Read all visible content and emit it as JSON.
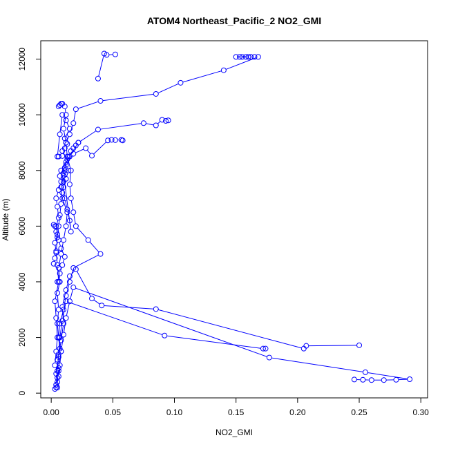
{
  "chart_data": {
    "type": "line",
    "title": "ATOM4 Northeast_Pacific_2 NO2_GMI",
    "xlabel": "NO2_GMI",
    "ylabel": "Altitude (m)",
    "xlim": [
      -0.0085,
      0.3055
    ],
    "ylim": [
      -170,
      12660
    ],
    "xticks": [
      0.0,
      0.05,
      0.1,
      0.15,
      0.2,
      0.25,
      0.3
    ],
    "xtick_labels": [
      "0.00",
      "0.05",
      "0.10",
      "0.15",
      "0.20",
      "0.25",
      "0.30"
    ],
    "yticks": [
      0,
      2000,
      4000,
      6000,
      8000,
      10000,
      12000
    ],
    "ytick_labels": [
      "0",
      "2000",
      "4000",
      "6000",
      "8000",
      "10000",
      "12000"
    ],
    "grid": false,
    "legend": "none",
    "color": "#0000ff",
    "marker": "open-circle",
    "series": [
      {
        "x": [
          0.003,
          0.004,
          0.005,
          0.006,
          0.005,
          0.007,
          0.006,
          0.005,
          0.006,
          0.005,
          0.007,
          0.006,
          0.008,
          0.01,
          0.012,
          0.013,
          0.009,
          0.008,
          0.01,
          0.011,
          0.013,
          0.009,
          0.012,
          0.015,
          0.018,
          0.02,
          0.04,
          0.085,
          0.105,
          0.14,
          0.168
        ],
        "y": [
          150,
          300,
          550,
          800,
          1200,
          1600,
          2000,
          2500,
          3000,
          3600,
          4000,
          4500,
          5000,
          5500,
          6000,
          6500,
          7000,
          7400,
          7800,
          8100,
          8400,
          8700,
          9000,
          9300,
          9700,
          10200,
          10500,
          10750,
          11150,
          11600,
          12080
        ]
      },
      {
        "x": [
          0.165,
          0.162,
          0.158,
          0.155,
          0.15,
          0.16,
          0.153,
          0.162
        ],
        "y": [
          12080,
          12080,
          12080,
          12080,
          12080,
          12080,
          12080,
          12080
        ]
      },
      {
        "x": [
          0.004,
          0.006,
          0.007,
          0.008,
          0.006,
          0.007,
          0.01,
          0.012,
          0.015,
          0.018,
          0.04,
          0.03,
          0.02,
          0.018,
          0.016,
          0.015,
          0.016,
          0.013,
          0.012,
          0.01,
          0.012,
          0.011,
          0.009,
          0.008,
          0.007,
          0.006
        ],
        "y": [
          200,
          600,
          1000,
          1500,
          2000,
          2500,
          3000,
          3500,
          4000,
          4500,
          5000,
          5500,
          6000,
          6500,
          7000,
          7500,
          8000,
          8500,
          9000,
          9500,
          10000,
          10300,
          10400,
          10400,
          10350,
          10300
        ]
      },
      {
        "x": [
          0.038,
          0.043,
          0.045,
          0.052
        ],
        "y": [
          11300,
          12200,
          12150,
          12170
        ]
      },
      {
        "x": [
          0.005,
          0.004,
          0.006,
          0.008,
          0.01,
          0.009,
          0.012,
          0.015,
          0.02,
          0.033,
          0.041,
          0.085,
          0.205,
          0.207,
          0.25
        ],
        "y": [
          200,
          700,
          1300,
          1900,
          2500,
          3100,
          3700,
          4200,
          4450,
          3400,
          3150,
          3020,
          1600,
          1700,
          1720
        ]
      },
      {
        "x": [
          0.004,
          0.005,
          0.006,
          0.007,
          0.009,
          0.012,
          0.092,
          0.172,
          0.174
        ],
        "y": [
          300,
          800,
          1400,
          2000,
          2600,
          3300,
          2070,
          1600,
          1600
        ]
      },
      {
        "x": [
          0.005,
          0.006,
          0.008,
          0.01,
          0.012,
          0.015,
          0.018,
          0.177,
          0.255,
          0.291,
          0.28,
          0.27,
          0.26,
          0.253,
          0.246
        ],
        "y": [
          400,
          900,
          1500,
          2100,
          2700,
          3300,
          3800,
          1280,
          750,
          500,
          480,
          470,
          470,
          480,
          490
        ]
      },
      {
        "x": [
          0.008,
          0.015,
          0.022,
          0.038,
          0.075,
          0.085,
          0.09,
          0.093,
          0.095
        ],
        "y": [
          8000,
          8500,
          9000,
          9470,
          9700,
          9620,
          9820,
          9780,
          9800
        ]
      },
      {
        "x": [
          0.007,
          0.012,
          0.018,
          0.028,
          0.033,
          0.046,
          0.049,
          0.052,
          0.057,
          0.058
        ],
        "y": [
          7800,
          8200,
          8600,
          8800,
          8530,
          9080,
          9100,
          9090,
          9100,
          9080
        ]
      },
      {
        "x": [
          0.003,
          0.004,
          0.005,
          0.004,
          0.003,
          0.006,
          0.005,
          0.004,
          0.005,
          0.006,
          0.007,
          0.008,
          0.009,
          0.01,
          0.011,
          0.012,
          0.014,
          0.016,
          0.018,
          0.02,
          0.022
        ],
        "y": [
          1000,
          1500,
          2000,
          2700,
          3300,
          4000,
          4600,
          5100,
          5600,
          6000,
          6400,
          6800,
          7200,
          7600,
          8000,
          8300,
          8500,
          8700,
          8800,
          8900,
          9000
        ]
      },
      {
        "x": [
          0.002,
          0.003,
          0.004,
          0.003,
          0.005,
          0.004,
          0.006,
          0.005,
          0.004,
          0.006,
          0.008,
          0.01,
          0.016,
          0.015,
          0.013,
          0.011,
          0.01,
          0.012,
          0.014
        ],
        "y": [
          4650,
          4850,
          5050,
          5400,
          5700,
          6000,
          6300,
          6700,
          7000,
          7300,
          7600,
          7900,
          5800,
          6200,
          6600,
          7000,
          7400,
          7700,
          8000
        ]
      },
      {
        "x": [
          0.006,
          0.009,
          0.011,
          0.013,
          0.011,
          0.015,
          0.012,
          0.009,
          0.007,
          0.005
        ],
        "y": [
          8500,
          8520,
          8800,
          8950,
          9150,
          9500,
          9800,
          10000,
          9300,
          8500
        ]
      },
      {
        "x": [
          0.005,
          0.007,
          0.009,
          0.011,
          0.008,
          0.006,
          0.004,
          0.003,
          0.002
        ],
        "y": [
          4000,
          4300,
          4600,
          4900,
          5200,
          5500,
          5800,
          6000,
          6050
        ]
      }
    ]
  }
}
